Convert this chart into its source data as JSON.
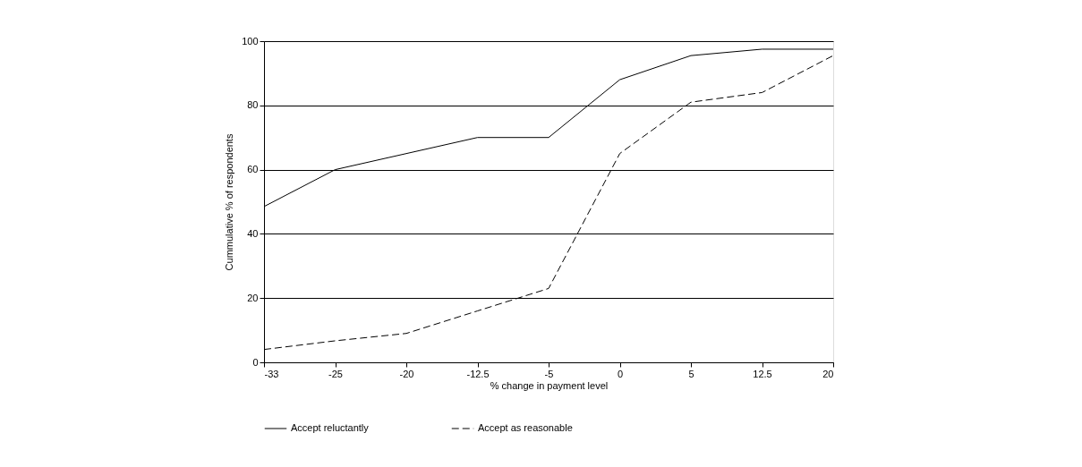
{
  "chart_data": {
    "type": "line",
    "xlabel": "% change in payment level",
    "ylabel": "Cummulative % of respondents",
    "categories": [
      "-33",
      "-25",
      "-20",
      "-12.5",
      "-5",
      "0",
      "5",
      "12.5",
      "20"
    ],
    "series": [
      {
        "name": "Accept reluctantly",
        "color": "#000000",
        "line_style": "solid",
        "values": [
          48.5,
          60,
          65,
          70,
          70,
          88,
          95.5,
          97.5,
          97.5
        ]
      },
      {
        "name": "Accept as reasonable",
        "color": "#000000",
        "line_style": "dashed",
        "values": [
          4,
          6.7,
          9,
          16,
          23,
          65,
          81,
          84,
          95.5
        ]
      }
    ],
    "ylim": [
      0,
      100
    ],
    "yticks": [
      0,
      20,
      40,
      60,
      80,
      100
    ],
    "grid": "y",
    "legend": "bottom",
    "marker": "none"
  }
}
